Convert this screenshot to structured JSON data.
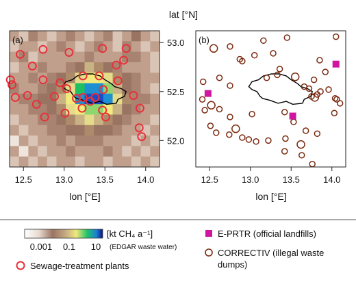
{
  "chart_data": [
    {
      "type": "heatmap",
      "panel_label": "(a)",
      "xlabel": "lon [°E]",
      "ylabel": "lat [°N]",
      "xlim": [
        12.33,
        14.17
      ],
      "ylim": [
        51.73,
        53.12
      ],
      "x_ticks": [
        "12.5",
        "13.0",
        "13.5",
        "14.0"
      ],
      "y_ticks": [
        "52.0",
        "52.5",
        "53.0"
      ],
      "x_tick_values": [
        12.5,
        13.0,
        13.5,
        14.0
      ],
      "y_tick_values": [
        52.0,
        52.5,
        53.0
      ],
      "grid_cols": 16,
      "grid_rows": 13,
      "heat_values": [
        [
          3,
          2,
          4,
          3,
          2,
          3,
          4,
          3,
          2,
          3,
          4,
          2,
          3,
          5,
          3,
          2
        ],
        [
          2,
          3,
          3,
          2,
          3,
          4,
          3,
          2,
          3,
          4,
          3,
          2,
          4,
          3,
          2,
          3
        ],
        [
          3,
          4,
          2,
          3,
          3,
          3,
          3,
          3,
          4,
          3,
          3,
          3,
          4,
          4,
          3,
          2
        ],
        [
          2,
          3,
          3,
          4,
          3,
          3,
          4,
          5,
          7,
          6,
          5,
          4,
          3,
          3,
          3,
          2
        ],
        [
          3,
          3,
          4,
          3,
          4,
          5,
          6,
          8,
          9,
          9,
          8,
          6,
          5,
          4,
          3,
          3
        ],
        [
          4,
          3,
          3,
          4,
          5,
          6,
          8,
          11,
          12,
          12,
          10,
          7,
          5,
          4,
          3,
          2
        ],
        [
          3,
          4,
          4,
          5,
          5,
          7,
          9,
          12,
          13,
          13,
          12,
          8,
          6,
          4,
          4,
          3
        ],
        [
          3,
          3,
          4,
          4,
          5,
          6,
          8,
          9,
          10,
          10,
          9,
          7,
          5,
          4,
          3,
          3
        ],
        [
          2,
          3,
          3,
          4,
          4,
          5,
          6,
          7,
          8,
          7,
          6,
          5,
          4,
          3,
          3,
          2
        ],
        [
          3,
          2,
          3,
          3,
          4,
          4,
          5,
          5,
          6,
          5,
          5,
          4,
          3,
          3,
          2,
          3
        ],
        [
          1,
          3,
          2,
          3,
          3,
          4,
          3,
          4,
          4,
          4,
          3,
          3,
          3,
          2,
          3,
          2
        ],
        [
          3,
          1,
          3,
          2,
          3,
          3,
          4,
          3,
          3,
          3,
          4,
          3,
          2,
          3,
          2,
          3
        ],
        [
          2,
          3,
          2,
          3,
          2,
          3,
          3,
          2,
          3,
          3,
          2,
          3,
          3,
          2,
          3,
          2
        ]
      ],
      "sewage_plants": [
        [
          12.46,
          52.88
        ],
        [
          12.74,
          52.93
        ],
        [
          13.06,
          52.9
        ],
        [
          13.47,
          52.94
        ],
        [
          13.76,
          52.94
        ],
        [
          12.61,
          52.76
        ],
        [
          12.34,
          52.62
        ],
        [
          12.36,
          52.57
        ],
        [
          13.73,
          52.82
        ],
        [
          13.64,
          52.77
        ],
        [
          13.23,
          52.66
        ],
        [
          13.43,
          52.66
        ],
        [
          12.95,
          52.59
        ],
        [
          13.66,
          52.61
        ],
        [
          12.74,
          52.62
        ],
        [
          13.03,
          52.53
        ],
        [
          13.48,
          52.52
        ],
        [
          13.32,
          52.4
        ],
        [
          12.4,
          52.44
        ],
        [
          12.55,
          52.46
        ],
        [
          12.88,
          52.45
        ],
        [
          13.15,
          52.43
        ],
        [
          13.23,
          52.44
        ],
        [
          13.38,
          52.44
        ],
        [
          13.85,
          52.46
        ],
        [
          12.66,
          52.37
        ],
        [
          13.22,
          52.33
        ],
        [
          13.47,
          52.31
        ],
        [
          13.93,
          52.33
        ],
        [
          12.76,
          52.24
        ],
        [
          13.01,
          52.28
        ],
        [
          13.51,
          52.24
        ],
        [
          13.92,
          52.13
        ],
        [
          13.95,
          52.04
        ]
      ],
      "colorbar": {
        "unit_label": "[kt CH₄ a⁻¹]",
        "tick_labels": [
          "0.001",
          "0.1",
          "10"
        ],
        "source_label": "(EDGAR waste water)"
      }
    },
    {
      "type": "scatter",
      "panel_label": "(b)",
      "xlabel": "lon [°E]",
      "xlim": [
        12.33,
        14.17
      ],
      "ylim": [
        51.73,
        53.12
      ],
      "x_ticks": [
        "12.5",
        "13.0",
        "13.5",
        "14.0"
      ],
      "x_tick_values": [
        12.5,
        13.0,
        13.5,
        14.0
      ],
      "series": [
        {
          "name": "E-PRTR (official landfills)",
          "points": [
            [
              12.48,
              52.48
            ],
            [
              13.52,
              52.25
            ],
            [
              14.05,
              52.78
            ]
          ]
        },
        {
          "name": "CORRECTIV (illegal waste dumps)",
          "points": [
            [
              13.45,
              53.05
            ],
            [
              14.05,
              53.06
            ],
            [
              13.16,
              53.02
            ],
            [
              12.55,
              52.94
            ],
            [
              12.75,
              52.96
            ],
            [
              13.05,
              52.87
            ],
            [
              13.28,
              52.89
            ],
            [
              12.9,
              52.81
            ],
            [
              13.36,
              52.73
            ],
            [
              13.85,
              52.82
            ],
            [
              13.2,
              52.64
            ],
            [
              13.33,
              52.67
            ],
            [
              13.55,
              52.65
            ],
            [
              13.78,
              52.62
            ],
            [
              13.92,
              52.7
            ],
            [
              12.42,
              52.6
            ],
            [
              12.62,
              52.64
            ],
            [
              12.75,
              52.56
            ],
            [
              13.66,
              52.55
            ],
            [
              13.72,
              52.53
            ],
            [
              13.75,
              52.45
            ],
            [
              13.79,
              52.44
            ],
            [
              13.82,
              52.47
            ],
            [
              13.86,
              52.5
            ],
            [
              13.96,
              52.52
            ],
            [
              14.04,
              52.43
            ],
            [
              14.06,
              52.42
            ],
            [
              14.1,
              52.38
            ],
            [
              14.03,
              52.28
            ],
            [
              12.41,
              52.42
            ],
            [
              12.52,
              52.36
            ],
            [
              12.44,
              52.31
            ],
            [
              12.62,
              52.32
            ],
            [
              12.75,
              52.24
            ],
            [
              13.02,
              52.27
            ],
            [
              13.42,
              52.29
            ],
            [
              13.53,
              52.19
            ],
            [
              12.51,
              52.15
            ],
            [
              12.58,
              52.08
            ],
            [
              12.82,
              52.12
            ],
            [
              12.74,
              52.06
            ],
            [
              12.9,
              52.03
            ],
            [
              12.98,
              52.01
            ],
            [
              13.07,
              51.99
            ],
            [
              13.22,
              52.0
            ],
            [
              13.43,
              52.02
            ],
            [
              13.68,
              52.1
            ],
            [
              13.82,
              52.07
            ],
            [
              13.62,
              51.96
            ],
            [
              13.63,
              51.85
            ],
            [
              13.42,
              51.89
            ],
            [
              13.76,
              51.76
            ],
            [
              12.87,
              52.83
            ]
          ]
        }
      ]
    }
  ],
  "legend": {
    "sewage": "Sewage-treatment plants",
    "eprtr": "E-PRTR (official landfills)",
    "correctiv_line1": "CORRECTIV (illegal waste",
    "correctiv_line2": "dumps)"
  },
  "colors": {
    "sewage": "#e8303a",
    "eprtr": "#d0169e",
    "correctiv": "#7a2a10",
    "berlin_outline": "#000000"
  }
}
